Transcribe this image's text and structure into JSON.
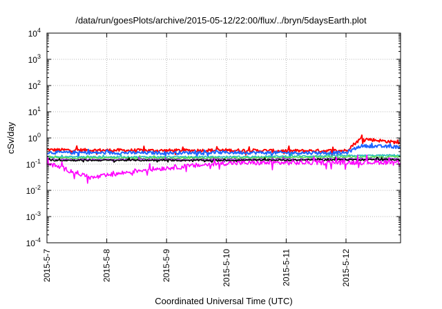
{
  "chart_data": {
    "type": "line",
    "title": "/data/run/goesPlots/archive/2015-05-12/22:00/flux/../bryn/5daysEarth.plot",
    "xlabel": "Coordinated Universal Time (UTC)",
    "ylabel": "cSv/day",
    "y_scale": "log",
    "ylim": [
      0.0001,
      10000
    ],
    "y_ticks": [
      {
        "value": 0.0001,
        "base": "10",
        "exp": "-4"
      },
      {
        "value": 0.001,
        "base": "10",
        "exp": "-3"
      },
      {
        "value": 0.01,
        "base": "10",
        "exp": "-2"
      },
      {
        "value": 0.1,
        "base": "10",
        "exp": "-1"
      },
      {
        "value": 1,
        "base": "10",
        "exp": "0"
      },
      {
        "value": 10,
        "base": "10",
        "exp": "1"
      },
      {
        "value": 100,
        "base": "10",
        "exp": "2"
      },
      {
        "value": 1000,
        "base": "10",
        "exp": "3"
      },
      {
        "value": 10000,
        "base": "10",
        "exp": "4"
      }
    ],
    "x_ticks": [
      "2015-5-7",
      "2015-5-8",
      "2015-5-9",
      "2015-5-10",
      "2015-5-11",
      "2015-5-12"
    ],
    "grid": true,
    "legend": "none",
    "series": [
      {
        "color": "#ff0000",
        "daily": [
          {
            "x": "2015-5-7",
            "y": 0.35
          },
          {
            "x": "2015-5-8",
            "y": 0.34
          },
          {
            "x": "2015-5-9",
            "y": 0.33
          },
          {
            "x": "2015-5-10",
            "y": 0.34
          },
          {
            "x": "2015-5-11",
            "y": 0.32
          },
          {
            "x": "2015-5-12",
            "y": 0.33
          },
          {
            "x": "2015-5-12 06:00",
            "y": 0.95
          },
          {
            "x": "2015-5-12 22:00",
            "y": 0.65
          }
        ]
      },
      {
        "color": "#1e64ff",
        "daily": [
          {
            "x": "2015-5-7",
            "y": 0.28
          },
          {
            "x": "2015-5-8",
            "y": 0.27
          },
          {
            "x": "2015-5-9",
            "y": 0.27
          },
          {
            "x": "2015-5-10",
            "y": 0.28
          },
          {
            "x": "2015-5-11",
            "y": 0.27
          },
          {
            "x": "2015-5-12",
            "y": 0.27
          },
          {
            "x": "2015-5-12 06:00",
            "y": 0.5
          },
          {
            "x": "2015-5-12 22:00",
            "y": 0.45
          }
        ]
      },
      {
        "color": "#22bbbb",
        "daily": [
          {
            "x": "2015-5-7",
            "y": 0.19
          },
          {
            "x": "2015-5-10",
            "y": 0.19
          },
          {
            "x": "2015-5-12 22:00",
            "y": 0.22
          }
        ]
      },
      {
        "color": "#55dd55",
        "daily": [
          {
            "x": "2015-5-7",
            "y": 0.17
          },
          {
            "x": "2015-5-10",
            "y": 0.17
          },
          {
            "x": "2015-5-12 22:00",
            "y": 0.19
          }
        ]
      },
      {
        "color": "#9933cc",
        "daily": [
          {
            "x": "2015-5-7",
            "y": 0.15
          },
          {
            "x": "2015-5-10",
            "y": 0.15
          },
          {
            "x": "2015-5-12 22:00",
            "y": 0.16
          }
        ]
      },
      {
        "color": "#000000",
        "daily": [
          {
            "x": "2015-5-7",
            "y": 0.14
          },
          {
            "x": "2015-5-10",
            "y": 0.14
          },
          {
            "x": "2015-5-12 22:00",
            "y": 0.15
          }
        ]
      },
      {
        "color": "#ff00ff",
        "daily": [
          {
            "x": "2015-5-7",
            "y": 0.11
          },
          {
            "x": "2015-5-7 18:00",
            "y": 0.03
          },
          {
            "x": "2015-5-8 14:00",
            "y": 0.06
          },
          {
            "x": "2015-5-10",
            "y": 0.11
          },
          {
            "x": "2015-5-12 22:00",
            "y": 0.12
          }
        ]
      }
    ]
  }
}
